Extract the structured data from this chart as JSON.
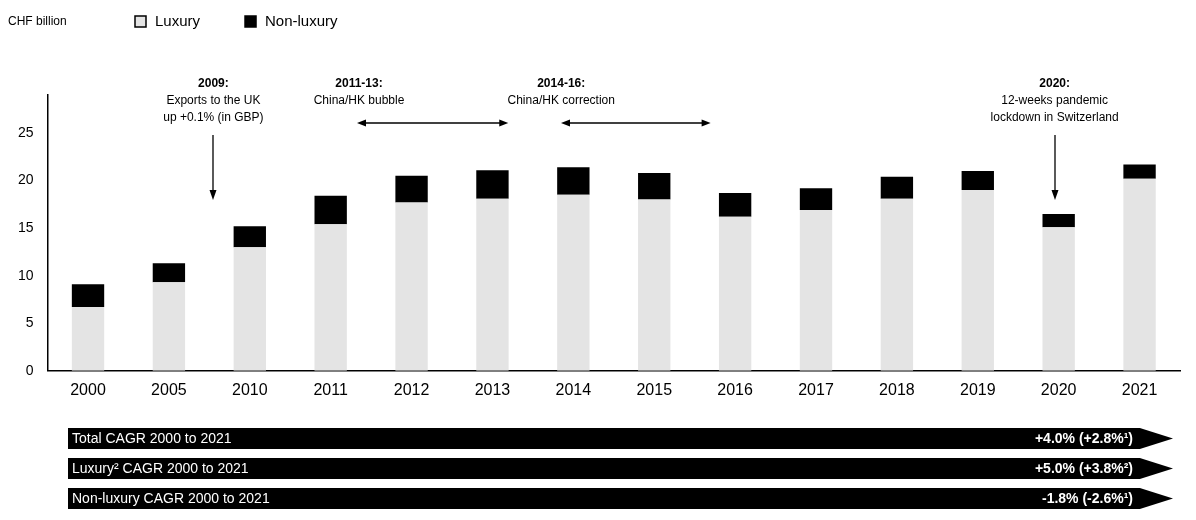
{
  "chart_data": {
    "type": "bar",
    "stacked": true,
    "legend": "top left",
    "grid": false,
    "categories": [
      "2000",
      "2005",
      "2010",
      "2011",
      "2012",
      "2013",
      "2014",
      "2015",
      "2016",
      "2017",
      "2018",
      "2019",
      "2020",
      "2021"
    ],
    "series": [
      {
        "name": "Luxury",
        "color": "#e4e4e4",
        "values": [
          6.7,
          9.3,
          13.0,
          15.4,
          17.7,
          18.1,
          18.5,
          18.0,
          16.2,
          16.9,
          18.1,
          19.0,
          15.1,
          20.2
        ]
      },
      {
        "name": "Non-luxury",
        "color": "#000000",
        "values": [
          2.4,
          2.0,
          2.2,
          3.0,
          2.8,
          3.0,
          2.9,
          2.8,
          2.5,
          2.3,
          2.3,
          2.0,
          1.4,
          1.5
        ]
      }
    ],
    "ylim": [
      0,
      29
    ],
    "yticks": [
      0,
      5,
      10,
      15,
      20,
      25
    ],
    "annotations": [
      "CHF billion",
      "2009:\nExports to the UK\nup +0.1% (in GBP)",
      "2011-13:\nChina/HK bubble",
      "2014-16:\nChina/HK correction",
      "2020:\n12-weeks pandemic\nlockdown in Switzerland",
      "Total CAGR 2000 to 2021",
      "+4.0% (+2.8%¹)",
      "Luxury² CAGR 2000 to 2021",
      "+5.0% (+3.8%²)",
      "Non-luxury CAGR 2000 to 2021",
      "-1.8% (-2.6%¹)"
    ]
  }
}
